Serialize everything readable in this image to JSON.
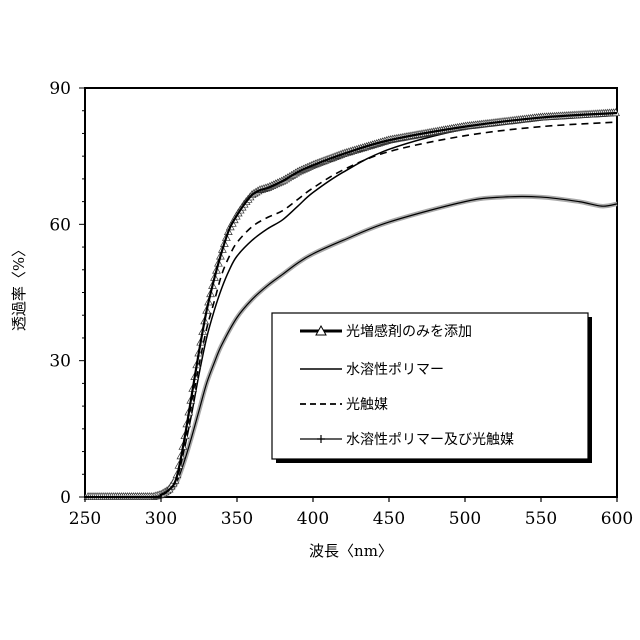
{
  "chart_data": {
    "type": "line",
    "title": "",
    "xlabel": "波長〈nm〉",
    "ylabel": "透過率〈%〉",
    "xlim": [
      250,
      600
    ],
    "ylim": [
      0,
      90
    ],
    "xticks": [
      250,
      300,
      350,
      400,
      450,
      500,
      550,
      600
    ],
    "yticks": [
      0,
      30,
      60,
      90
    ],
    "grid": false,
    "legend_position": "inside-lower-right",
    "series": [
      {
        "name": "光増感剤のみを添加",
        "style": "thick-solid-triangle-markers",
        "color": "#000000",
        "x": [
          250,
          295,
          300,
          305,
          310,
          315,
          320,
          325,
          330,
          335,
          340,
          345,
          350,
          355,
          360,
          365,
          370,
          380,
          390,
          400,
          420,
          450,
          500,
          550,
          600
        ],
        "y": [
          0,
          0,
          0.5,
          1.5,
          4,
          12,
          22,
          32,
          41,
          48,
          54,
          59,
          62,
          64.5,
          66.5,
          67.5,
          68,
          69.5,
          71.5,
          73,
          75.5,
          78.5,
          81.5,
          83.5,
          84.5
        ]
      },
      {
        "name": "水溶性ポリマー",
        "style": "thin-solid",
        "color": "#000000",
        "x": [
          250,
          295,
          300,
          305,
          310,
          315,
          320,
          325,
          330,
          335,
          340,
          345,
          350,
          360,
          370,
          380,
          390,
          400,
          420,
          450,
          500,
          550,
          600
        ],
        "y": [
          0,
          0,
          0.3,
          1.2,
          3.5,
          10,
          18,
          27,
          35,
          41,
          46,
          50,
          53,
          56.5,
          59,
          61,
          64,
          67,
          71.5,
          76.5,
          81,
          83.5,
          84.5
        ]
      },
      {
        "name": "光触媒",
        "style": "dashed",
        "color": "#000000",
        "x": [
          250,
          295,
          300,
          305,
          310,
          315,
          320,
          325,
          330,
          335,
          340,
          345,
          350,
          360,
          370,
          380,
          390,
          400,
          420,
          450,
          500,
          550,
          600
        ],
        "y": [
          0,
          0,
          0.3,
          1.2,
          4,
          11,
          20,
          29,
          37,
          43,
          49,
          53,
          56,
          59.5,
          61.5,
          63,
          65.5,
          68,
          72,
          76,
          79.5,
          81.5,
          82.5
        ]
      },
      {
        "name": "水溶性ポリマー及び光触媒",
        "style": "solid-plus-markers",
        "color": "#000000",
        "x": [
          250,
          295,
          300,
          305,
          310,
          315,
          320,
          325,
          330,
          335,
          340,
          350,
          360,
          370,
          380,
          390,
          400,
          420,
          450,
          500,
          525,
          550,
          575,
          590,
          600
        ],
        "y": [
          0,
          0,
          0.3,
          1,
          3,
          7.5,
          13,
          19,
          25,
          29.5,
          33.5,
          39.5,
          43.5,
          46.5,
          49,
          51.5,
          53.5,
          56.5,
          60.5,
          65,
          66,
          66,
          65,
          64,
          64.5
        ]
      }
    ]
  }
}
